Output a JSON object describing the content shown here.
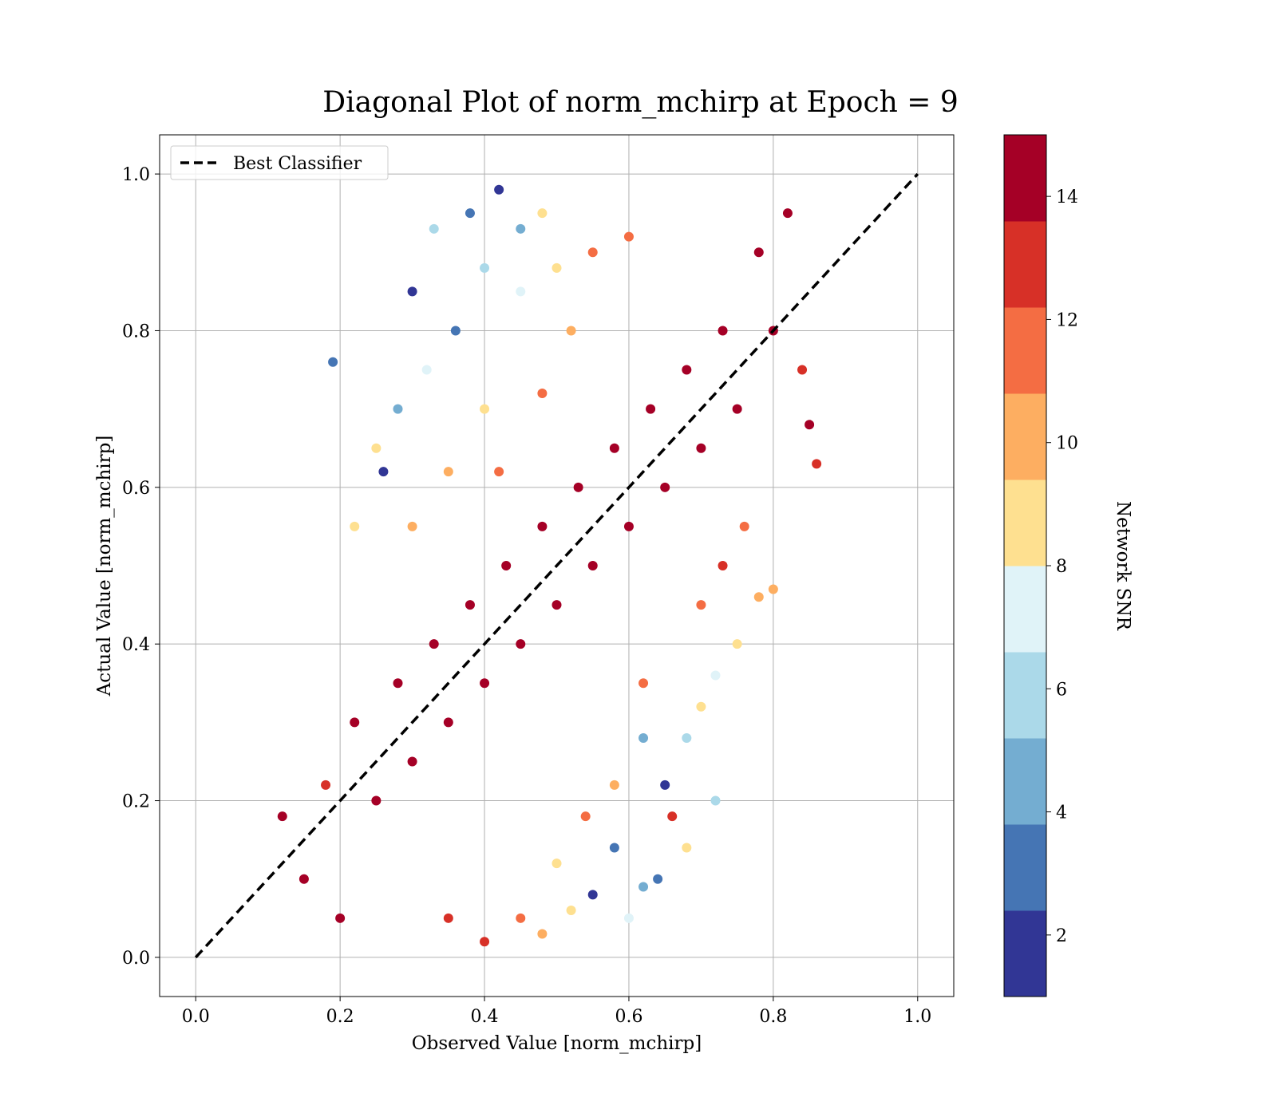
{
  "chart_data": {
    "type": "scatter",
    "title": "Diagonal Plot of norm_mchirp at Epoch = 9",
    "xlabel": "Observed Value [norm_mchirp]",
    "ylabel": "Actual Value [norm_mchirp]",
    "xlim": [
      -0.05,
      1.05
    ],
    "ylim": [
      -0.05,
      1.05
    ],
    "xticks": [
      0.0,
      0.2,
      0.4,
      0.6,
      0.8,
      1.0
    ],
    "yticks": [
      0.0,
      0.2,
      0.4,
      0.6,
      0.8,
      1.0
    ],
    "xtick_labels": [
      "0.0",
      "0.2",
      "0.4",
      "0.6",
      "0.8",
      "1.0"
    ],
    "ytick_labels": [
      "0.0",
      "0.2",
      "0.4",
      "0.6",
      "0.8",
      "1.0"
    ],
    "grid": true,
    "legend": {
      "placement": "upper-left",
      "entries": [
        "Best Classifier"
      ]
    },
    "reference_line": {
      "name": "Best Classifier",
      "x": [
        0.0,
        1.0
      ],
      "y": [
        0.0,
        1.0
      ],
      "style": "dashed",
      "color": "#000000"
    },
    "colorbar": {
      "label": "Network SNR",
      "range": [
        1,
        15
      ],
      "ticks": [
        2,
        4,
        6,
        8,
        10,
        12,
        14
      ],
      "tick_labels": [
        "2",
        "4",
        "6",
        "8",
        "10",
        "12",
        "14"
      ],
      "colors": [
        "#313695",
        "#4575b4",
        "#74add1",
        "#abd9e9",
        "#e0f3f8",
        "#fee090",
        "#fdae61",
        "#f46d43",
        "#d73027",
        "#a50026"
      ]
    },
    "series": [
      {
        "marker": "circle",
        "color_by": "Network SNR",
        "points": [
          {
            "x": 0.12,
            "y": 0.18,
            "snr": 14.5
          },
          {
            "x": 0.15,
            "y": 0.1,
            "snr": 14.5
          },
          {
            "x": 0.2,
            "y": 0.05,
            "snr": 14.5
          },
          {
            "x": 0.18,
            "y": 0.22,
            "snr": 13.5
          },
          {
            "x": 0.22,
            "y": 0.3,
            "snr": 14.5
          },
          {
            "x": 0.25,
            "y": 0.2,
            "snr": 14.5
          },
          {
            "x": 0.28,
            "y": 0.35,
            "snr": 14.5
          },
          {
            "x": 0.3,
            "y": 0.25,
            "snr": 14.5
          },
          {
            "x": 0.33,
            "y": 0.4,
            "snr": 14.5
          },
          {
            "x": 0.35,
            "y": 0.3,
            "snr": 14.5
          },
          {
            "x": 0.38,
            "y": 0.45,
            "snr": 14.5
          },
          {
            "x": 0.4,
            "y": 0.35,
            "snr": 14.5
          },
          {
            "x": 0.43,
            "y": 0.5,
            "snr": 14.5
          },
          {
            "x": 0.45,
            "y": 0.4,
            "snr": 14.5
          },
          {
            "x": 0.48,
            "y": 0.55,
            "snr": 14.5
          },
          {
            "x": 0.5,
            "y": 0.45,
            "snr": 14.5
          },
          {
            "x": 0.53,
            "y": 0.6,
            "snr": 14.5
          },
          {
            "x": 0.55,
            "y": 0.5,
            "snr": 14.5
          },
          {
            "x": 0.58,
            "y": 0.65,
            "snr": 14.5
          },
          {
            "x": 0.6,
            "y": 0.55,
            "snr": 14.5
          },
          {
            "x": 0.63,
            "y": 0.7,
            "snr": 14.5
          },
          {
            "x": 0.65,
            "y": 0.6,
            "snr": 14.5
          },
          {
            "x": 0.68,
            "y": 0.75,
            "snr": 14.5
          },
          {
            "x": 0.7,
            "y": 0.65,
            "snr": 14.5
          },
          {
            "x": 0.73,
            "y": 0.8,
            "snr": 14.5
          },
          {
            "x": 0.75,
            "y": 0.7,
            "snr": 14.5
          },
          {
            "x": 0.78,
            "y": 0.9,
            "snr": 14.5
          },
          {
            "x": 0.8,
            "y": 0.8,
            "snr": 14.5
          },
          {
            "x": 0.82,
            "y": 0.95,
            "snr": 14.5
          },
          {
            "x": 0.84,
            "y": 0.75,
            "snr": 13.5
          },
          {
            "x": 0.86,
            "y": 0.63,
            "snr": 13.0
          },
          {
            "x": 0.85,
            "y": 0.68,
            "snr": 14.5
          },
          {
            "x": 0.3,
            "y": 0.85,
            "snr": 2.0
          },
          {
            "x": 0.33,
            "y": 0.93,
            "snr": 6.0
          },
          {
            "x": 0.38,
            "y": 0.95,
            "snr": 3.0
          },
          {
            "x": 0.42,
            "y": 0.98,
            "snr": 2.0
          },
          {
            "x": 0.45,
            "y": 0.93,
            "snr": 5.0
          },
          {
            "x": 0.4,
            "y": 0.88,
            "snr": 6.0
          },
          {
            "x": 0.36,
            "y": 0.8,
            "snr": 3.0
          },
          {
            "x": 0.32,
            "y": 0.75,
            "snr": 7.0
          },
          {
            "x": 0.28,
            "y": 0.7,
            "snr": 5.0
          },
          {
            "x": 0.25,
            "y": 0.65,
            "snr": 8.0
          },
          {
            "x": 0.22,
            "y": 0.55,
            "snr": 9.0
          },
          {
            "x": 0.19,
            "y": 0.76,
            "snr": 3.0
          },
          {
            "x": 0.26,
            "y": 0.62,
            "snr": 2.0
          },
          {
            "x": 0.48,
            "y": 0.95,
            "snr": 8.0
          },
          {
            "x": 0.5,
            "y": 0.88,
            "snr": 9.0
          },
          {
            "x": 0.45,
            "y": 0.85,
            "snr": 7.0
          },
          {
            "x": 0.52,
            "y": 0.8,
            "snr": 10.0
          },
          {
            "x": 0.4,
            "y": 0.7,
            "snr": 9.0
          },
          {
            "x": 0.35,
            "y": 0.62,
            "snr": 10.0
          },
          {
            "x": 0.3,
            "y": 0.55,
            "snr": 9.5
          },
          {
            "x": 0.55,
            "y": 0.9,
            "snr": 11.0
          },
          {
            "x": 0.6,
            "y": 0.92,
            "snr": 12.0
          },
          {
            "x": 0.48,
            "y": 0.72,
            "snr": 11.5
          },
          {
            "x": 0.42,
            "y": 0.62,
            "snr": 12.0
          },
          {
            "x": 0.62,
            "y": 0.28,
            "snr": 5.0
          },
          {
            "x": 0.65,
            "y": 0.22,
            "snr": 2.0
          },
          {
            "x": 0.68,
            "y": 0.28,
            "snr": 6.0
          },
          {
            "x": 0.72,
            "y": 0.2,
            "snr": 6.0
          },
          {
            "x": 0.58,
            "y": 0.14,
            "snr": 3.0
          },
          {
            "x": 0.55,
            "y": 0.08,
            "snr": 2.0
          },
          {
            "x": 0.6,
            "y": 0.05,
            "snr": 7.0
          },
          {
            "x": 0.5,
            "y": 0.12,
            "snr": 8.0
          },
          {
            "x": 0.52,
            "y": 0.06,
            "snr": 9.0
          },
          {
            "x": 0.48,
            "y": 0.03,
            "snr": 10.0
          },
          {
            "x": 0.62,
            "y": 0.09,
            "snr": 4.0
          },
          {
            "x": 0.64,
            "y": 0.1,
            "snr": 3.0
          },
          {
            "x": 0.68,
            "y": 0.14,
            "snr": 8.0
          },
          {
            "x": 0.66,
            "y": 0.18,
            "snr": 13.0
          },
          {
            "x": 0.7,
            "y": 0.32,
            "snr": 8.0
          },
          {
            "x": 0.75,
            "y": 0.4,
            "snr": 9.0
          },
          {
            "x": 0.72,
            "y": 0.36,
            "snr": 7.0
          },
          {
            "x": 0.78,
            "y": 0.46,
            "snr": 9.5
          },
          {
            "x": 0.8,
            "y": 0.47,
            "snr": 10.0
          },
          {
            "x": 0.76,
            "y": 0.55,
            "snr": 11.0
          },
          {
            "x": 0.58,
            "y": 0.22,
            "snr": 10.0
          },
          {
            "x": 0.54,
            "y": 0.18,
            "snr": 11.0
          },
          {
            "x": 0.62,
            "y": 0.35,
            "snr": 12.0
          },
          {
            "x": 0.45,
            "y": 0.05,
            "snr": 11.5
          },
          {
            "x": 0.4,
            "y": 0.02,
            "snr": 12.5
          },
          {
            "x": 0.35,
            "y": 0.05,
            "snr": 13.0
          },
          {
            "x": 0.7,
            "y": 0.45,
            "snr": 12.0
          },
          {
            "x": 0.73,
            "y": 0.5,
            "snr": 13.0
          }
        ]
      }
    ]
  }
}
